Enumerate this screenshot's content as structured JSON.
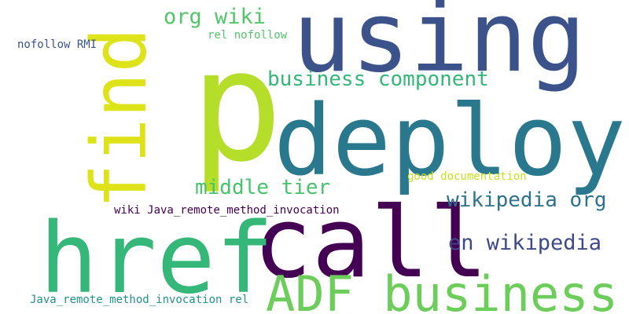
{
  "words": [
    {
      "text": "p",
      "color": "#b5de2b"
    },
    {
      "text": "using",
      "color": "#3b528b"
    },
    {
      "text": "find",
      "color": "#dde318"
    },
    {
      "text": "deploy",
      "color": "#2a788e"
    },
    {
      "text": "call",
      "color": "#440154"
    },
    {
      "text": "href",
      "color": "#35b779"
    },
    {
      "text": "ADF business",
      "color": "#6ccd5a"
    },
    {
      "text": "org wiki",
      "color": "#52c569"
    },
    {
      "text": "rel nofollow",
      "color": "#54c568"
    },
    {
      "text": "nofollow RMI",
      "color": "#3b528b"
    },
    {
      "text": "business component",
      "color": "#35b779"
    },
    {
      "text": "middle tier",
      "color": "#4ac16d"
    },
    {
      "text": "good documentation",
      "color": "#c8e020"
    },
    {
      "text": "wikipedia org",
      "color": "#2c728e"
    },
    {
      "text": "wiki Java_remote_method_invocation",
      "color": "#440154"
    },
    {
      "text": "en wikipedia",
      "color": "#3e4989"
    },
    {
      "text": "Java_remote_method_invocation rel",
      "color": "#21918c"
    }
  ]
}
